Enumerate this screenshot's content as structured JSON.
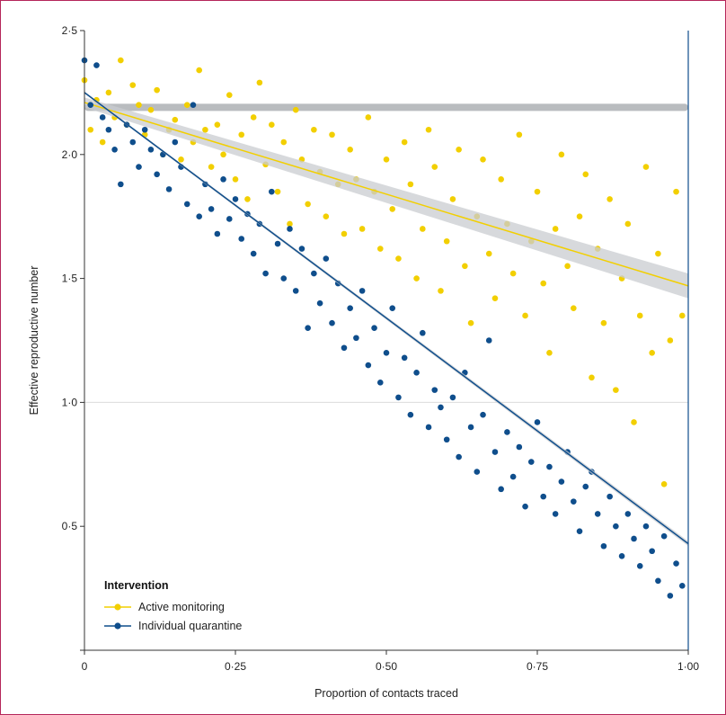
{
  "colors": {
    "active_monitoring": "#f2cf00",
    "individual_quarantine": "#0f4e8c",
    "no_tracing_band": "#b9bcbf",
    "ci_band": "#c9ccd0",
    "gridline": "#dcdcdc",
    "axis": "#333333",
    "frame": "#b5265a"
  },
  "chart_data": {
    "type": "scatter",
    "xlabel": "Proportion of contacts traced",
    "ylabel": "Effective reproductive number",
    "xlim": [
      0,
      1
    ],
    "ylim": [
      0,
      2.5
    ],
    "x_ticks": [
      {
        "value": 0,
        "label": "0"
      },
      {
        "value": 0.25,
        "label": "0·25"
      },
      {
        "value": 0.5,
        "label": "0·50"
      },
      {
        "value": 0.75,
        "label": "0·75"
      },
      {
        "value": 1.0,
        "label": "1·00"
      }
    ],
    "y_ticks": [
      {
        "value": 0.5,
        "label": "0·5"
      },
      {
        "value": 1.0,
        "label": "1·0"
      },
      {
        "value": 1.5,
        "label": "1·5"
      },
      {
        "value": 2.0,
        "label": "2·0"
      },
      {
        "value": 2.5,
        "label": "2·5"
      }
    ],
    "reference_lines": {
      "horizontal": 1.0,
      "vertical": 1.0
    },
    "legend": {
      "title": "Intervention",
      "position": "bottom-left",
      "entries": [
        {
          "label": "Active monitoring",
          "series": "active_monitoring"
        },
        {
          "label": "Individual quarantine",
          "series": "individual_quarantine"
        }
      ]
    },
    "series": [
      {
        "key": "no_tracing",
        "band_y": 2.19,
        "x_range": [
          0,
          1
        ]
      },
      {
        "key": "active_monitoring",
        "name": "Active monitoring",
        "trend": {
          "x0": 0,
          "y0": 2.21,
          "x1": 1.0,
          "y1": 1.47,
          "ci": 0.05
        },
        "points": [
          [
            0.0,
            2.3
          ],
          [
            0.01,
            2.1
          ],
          [
            0.02,
            2.22
          ],
          [
            0.03,
            2.05
          ],
          [
            0.04,
            2.25
          ],
          [
            0.05,
            2.15
          ],
          [
            0.06,
            2.38
          ],
          [
            0.07,
            2.12
          ],
          [
            0.08,
            2.28
          ],
          [
            0.09,
            2.2
          ],
          [
            0.1,
            2.08
          ],
          [
            0.11,
            2.18
          ],
          [
            0.12,
            2.26
          ],
          [
            0.13,
            2.0
          ],
          [
            0.14,
            2.1
          ],
          [
            0.15,
            2.14
          ],
          [
            0.16,
            1.98
          ],
          [
            0.17,
            2.2
          ],
          [
            0.18,
            2.05
          ],
          [
            0.19,
            2.34
          ],
          [
            0.2,
            2.1
          ],
          [
            0.21,
            1.95
          ],
          [
            0.22,
            2.12
          ],
          [
            0.23,
            2.0
          ],
          [
            0.24,
            2.24
          ],
          [
            0.25,
            1.9
          ],
          [
            0.26,
            2.08
          ],
          [
            0.27,
            1.82
          ],
          [
            0.28,
            2.15
          ],
          [
            0.29,
            2.29
          ],
          [
            0.3,
            1.96
          ],
          [
            0.31,
            2.12
          ],
          [
            0.32,
            1.85
          ],
          [
            0.33,
            2.05
          ],
          [
            0.34,
            1.72
          ],
          [
            0.35,
            2.18
          ],
          [
            0.36,
            1.98
          ],
          [
            0.37,
            1.8
          ],
          [
            0.38,
            2.1
          ],
          [
            0.39,
            1.93
          ],
          [
            0.4,
            1.75
          ],
          [
            0.41,
            2.08
          ],
          [
            0.42,
            1.88
          ],
          [
            0.43,
            1.68
          ],
          [
            0.44,
            2.02
          ],
          [
            0.45,
            1.9
          ],
          [
            0.46,
            1.7
          ],
          [
            0.47,
            2.15
          ],
          [
            0.48,
            1.85
          ],
          [
            0.49,
            1.62
          ],
          [
            0.5,
            1.98
          ],
          [
            0.51,
            1.78
          ],
          [
            0.52,
            1.58
          ],
          [
            0.53,
            2.05
          ],
          [
            0.54,
            1.88
          ],
          [
            0.55,
            1.5
          ],
          [
            0.56,
            1.7
          ],
          [
            0.57,
            2.1
          ],
          [
            0.58,
            1.95
          ],
          [
            0.59,
            1.45
          ],
          [
            0.6,
            1.65
          ],
          [
            0.61,
            1.82
          ],
          [
            0.62,
            2.02
          ],
          [
            0.63,
            1.55
          ],
          [
            0.64,
            1.32
          ],
          [
            0.65,
            1.75
          ],
          [
            0.66,
            1.98
          ],
          [
            0.67,
            1.6
          ],
          [
            0.68,
            1.42
          ],
          [
            0.69,
            1.9
          ],
          [
            0.7,
            1.72
          ],
          [
            0.71,
            1.52
          ],
          [
            0.72,
            2.08
          ],
          [
            0.73,
            1.35
          ],
          [
            0.74,
            1.65
          ],
          [
            0.75,
            1.85
          ],
          [
            0.76,
            1.48
          ],
          [
            0.77,
            1.2
          ],
          [
            0.78,
            1.7
          ],
          [
            0.79,
            2.0
          ],
          [
            0.8,
            1.55
          ],
          [
            0.81,
            1.38
          ],
          [
            0.82,
            1.75
          ],
          [
            0.83,
            1.92
          ],
          [
            0.84,
            1.1
          ],
          [
            0.85,
            1.62
          ],
          [
            0.86,
            1.32
          ],
          [
            0.87,
            1.82
          ],
          [
            0.88,
            1.05
          ],
          [
            0.89,
            1.5
          ],
          [
            0.9,
            1.72
          ],
          [
            0.91,
            0.92
          ],
          [
            0.92,
            1.35
          ],
          [
            0.93,
            1.95
          ],
          [
            0.94,
            1.2
          ],
          [
            0.95,
            1.6
          ],
          [
            0.96,
            0.67
          ],
          [
            0.97,
            1.25
          ],
          [
            0.98,
            1.85
          ],
          [
            0.99,
            1.35
          ]
        ]
      },
      {
        "key": "individual_quarantine",
        "name": "Individual quarantine",
        "trend": {
          "x0": 0,
          "y0": 2.25,
          "x1": 1.0,
          "y1": 0.43,
          "ci": 0.01
        },
        "points": [
          [
            0.0,
            2.38
          ],
          [
            0.01,
            2.2
          ],
          [
            0.02,
            2.36
          ],
          [
            0.03,
            2.15
          ],
          [
            0.04,
            2.1
          ],
          [
            0.05,
            2.02
          ],
          [
            0.06,
            1.88
          ],
          [
            0.07,
            2.12
          ],
          [
            0.08,
            2.05
          ],
          [
            0.09,
            1.95
          ],
          [
            0.1,
            2.1
          ],
          [
            0.11,
            2.02
          ],
          [
            0.12,
            1.92
          ],
          [
            0.13,
            2.0
          ],
          [
            0.14,
            1.86
          ],
          [
            0.15,
            2.05
          ],
          [
            0.16,
            1.95
          ],
          [
            0.17,
            1.8
          ],
          [
            0.18,
            2.2
          ],
          [
            0.19,
            1.75
          ],
          [
            0.2,
            1.88
          ],
          [
            0.21,
            1.78
          ],
          [
            0.22,
            1.68
          ],
          [
            0.23,
            1.9
          ],
          [
            0.24,
            1.74
          ],
          [
            0.25,
            1.82
          ],
          [
            0.26,
            1.66
          ],
          [
            0.27,
            1.76
          ],
          [
            0.28,
            1.6
          ],
          [
            0.29,
            1.72
          ],
          [
            0.3,
            1.52
          ],
          [
            0.31,
            1.85
          ],
          [
            0.32,
            1.64
          ],
          [
            0.33,
            1.5
          ],
          [
            0.34,
            1.7
          ],
          [
            0.35,
            1.45
          ],
          [
            0.36,
            1.62
          ],
          [
            0.37,
            1.3
          ],
          [
            0.38,
            1.52
          ],
          [
            0.39,
            1.4
          ],
          [
            0.4,
            1.58
          ],
          [
            0.41,
            1.32
          ],
          [
            0.42,
            1.48
          ],
          [
            0.43,
            1.22
          ],
          [
            0.44,
            1.38
          ],
          [
            0.45,
            1.26
          ],
          [
            0.46,
            1.45
          ],
          [
            0.47,
            1.15
          ],
          [
            0.48,
            1.3
          ],
          [
            0.49,
            1.08
          ],
          [
            0.5,
            1.2
          ],
          [
            0.51,
            1.38
          ],
          [
            0.52,
            1.02
          ],
          [
            0.53,
            1.18
          ],
          [
            0.54,
            0.95
          ],
          [
            0.55,
            1.12
          ],
          [
            0.56,
            1.28
          ],
          [
            0.57,
            0.9
          ],
          [
            0.58,
            1.05
          ],
          [
            0.59,
            0.98
          ],
          [
            0.6,
            0.85
          ],
          [
            0.61,
            1.02
          ],
          [
            0.62,
            0.78
          ],
          [
            0.63,
            1.12
          ],
          [
            0.64,
            0.9
          ],
          [
            0.65,
            0.72
          ],
          [
            0.66,
            0.95
          ],
          [
            0.67,
            1.25
          ],
          [
            0.68,
            0.8
          ],
          [
            0.69,
            0.65
          ],
          [
            0.7,
            0.88
          ],
          [
            0.71,
            0.7
          ],
          [
            0.72,
            0.82
          ],
          [
            0.73,
            0.58
          ],
          [
            0.74,
            0.76
          ],
          [
            0.75,
            0.92
          ],
          [
            0.76,
            0.62
          ],
          [
            0.77,
            0.74
          ],
          [
            0.78,
            0.55
          ],
          [
            0.79,
            0.68
          ],
          [
            0.8,
            0.8
          ],
          [
            0.81,
            0.6
          ],
          [
            0.82,
            0.48
          ],
          [
            0.83,
            0.66
          ],
          [
            0.84,
            0.72
          ],
          [
            0.85,
            0.55
          ],
          [
            0.86,
            0.42
          ],
          [
            0.87,
            0.62
          ],
          [
            0.88,
            0.5
          ],
          [
            0.89,
            0.38
          ],
          [
            0.9,
            0.55
          ],
          [
            0.91,
            0.45
          ],
          [
            0.92,
            0.34
          ],
          [
            0.93,
            0.5
          ],
          [
            0.94,
            0.4
          ],
          [
            0.95,
            0.28
          ],
          [
            0.96,
            0.46
          ],
          [
            0.97,
            0.22
          ],
          [
            0.98,
            0.35
          ],
          [
            0.99,
            0.26
          ]
        ]
      }
    ]
  }
}
